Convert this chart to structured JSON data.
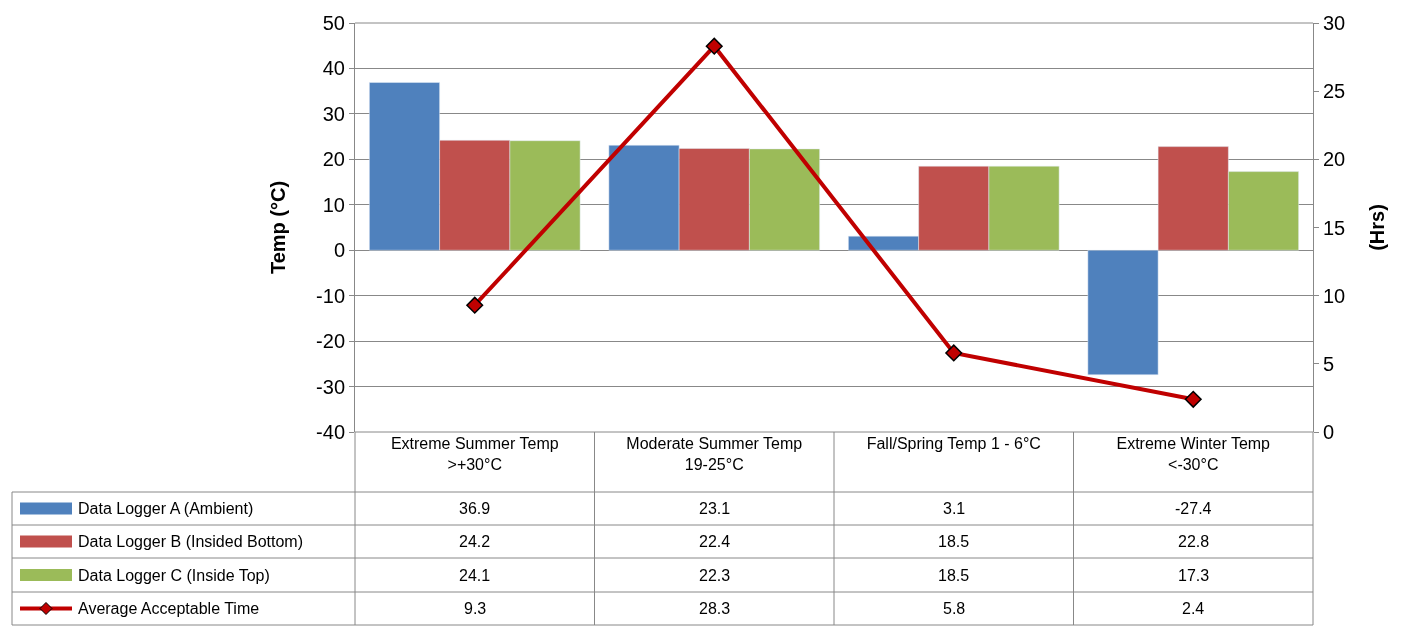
{
  "chart_data": {
    "type": "bar",
    "ylabel": "Temp (°C)",
    "y2label": "(Hrs)",
    "categories": [
      "Extreme Summer Temp >+30°C",
      "Moderate Summer Temp 19-25°C",
      "Fall/Spring Temp 1 - 6°C",
      "Extreme Winter Temp <-30°C"
    ],
    "series": [
      {
        "name": "Data Logger A (Ambient)",
        "color": "#4f81bd",
        "values": [
          36.9,
          23.1,
          3.1,
          -27.4
        ]
      },
      {
        "name": "Data Logger B (Insided Bottom)",
        "color": "#c0504d",
        "values": [
          24.2,
          22.4,
          18.5,
          22.8
        ]
      },
      {
        "name": "Data Logger C (Inside Top)",
        "color": "#9bbb59",
        "values": [
          24.1,
          22.3,
          18.5,
          17.3
        ]
      },
      {
        "name": "Average Acceptable Time",
        "color": "#c00000",
        "type": "line",
        "axis": "y2",
        "marker": "diamond",
        "line_style": "solid",
        "values": [
          9.3,
          28.3,
          5.8,
          2.4
        ]
      }
    ],
    "ylim": [
      -40,
      50
    ],
    "yticks": [
      -40,
      -30,
      -20,
      -10,
      0,
      10,
      20,
      30,
      40,
      50
    ],
    "y2lim": [
      0,
      30
    ],
    "y2ticks": [
      0,
      5,
      10,
      15,
      20,
      25,
      30
    ],
    "grid": "y",
    "legend": "bottom",
    "data_labels": true
  }
}
